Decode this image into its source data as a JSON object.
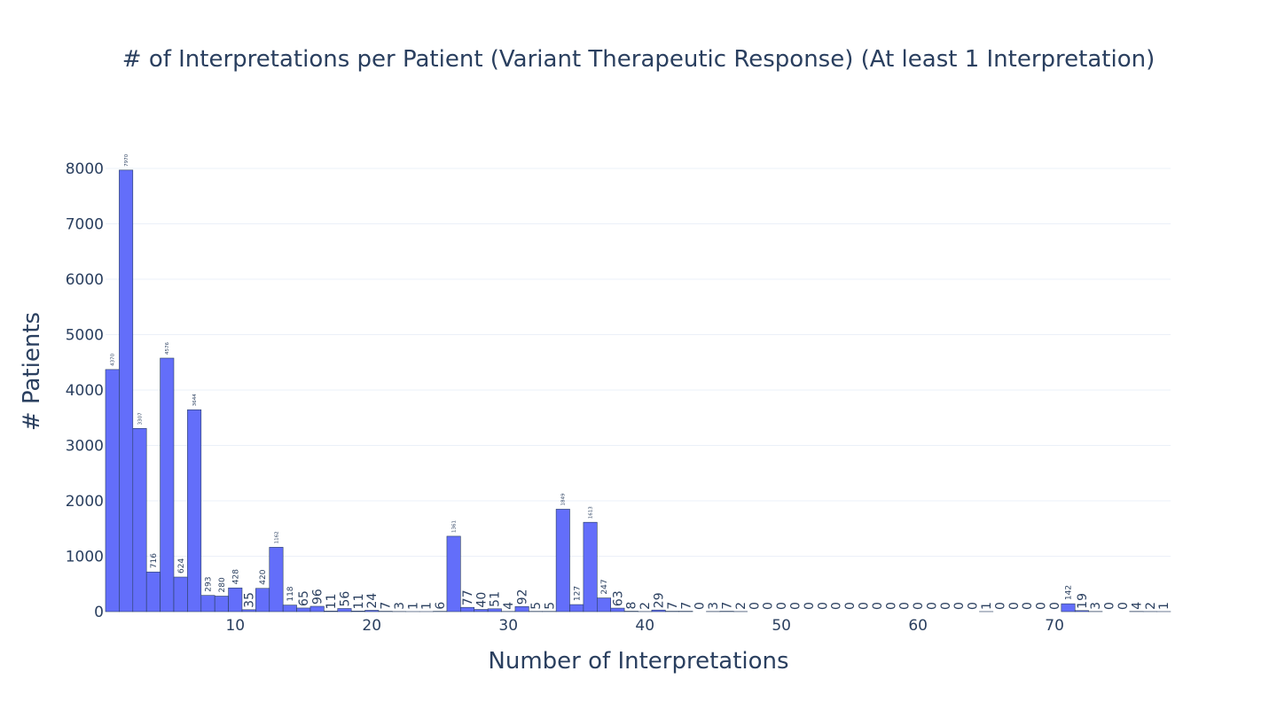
{
  "chart_data": {
    "type": "bar",
    "title": "# of Interpretations per Patient (Variant Therapeutic Response) (At least 1 Interpretation)",
    "xlabel": "Number of Interpretations",
    "ylabel": "# Patients",
    "x": [
      1,
      2,
      3,
      4,
      5,
      6,
      7,
      8,
      9,
      10,
      11,
      12,
      13,
      14,
      15,
      16,
      17,
      18,
      19,
      20,
      21,
      22,
      23,
      24,
      25,
      26,
      27,
      28,
      29,
      30,
      31,
      32,
      33,
      34,
      35,
      36,
      37,
      38,
      39,
      40,
      41,
      42,
      43,
      44,
      45,
      46,
      47,
      48,
      49,
      50,
      51,
      52,
      53,
      54,
      55,
      56,
      57,
      58,
      59,
      60,
      61,
      62,
      63,
      64,
      65,
      66,
      67,
      68,
      69,
      70,
      71,
      72,
      73,
      74,
      75,
      76,
      77,
      78
    ],
    "values": [
      4370,
      7970,
      3307,
      716,
      4576,
      624,
      3644,
      293,
      280,
      428,
      35,
      420,
      1162,
      118,
      65,
      96,
      11,
      56,
      11,
      24,
      7,
      3,
      1,
      1,
      6,
      1361,
      77,
      40,
      51,
      4,
      92,
      5,
      5,
      1849,
      127,
      1613,
      247,
      63,
      8,
      2,
      29,
      7,
      7,
      0,
      3,
      7,
      2,
      0,
      0,
      0,
      0,
      0,
      0,
      0,
      0,
      0,
      0,
      0,
      0,
      0,
      0,
      0,
      0,
      0,
      1,
      0,
      0,
      0,
      0,
      0,
      142,
      19,
      3,
      0,
      0,
      4,
      2,
      1
    ],
    "xlim": [
      0.5,
      78.5
    ],
    "ylim": [
      0,
      8400
    ],
    "xticks": [
      10,
      20,
      30,
      40,
      50,
      60,
      70
    ],
    "yticks": [
      0,
      1000,
      2000,
      3000,
      4000,
      5000,
      6000,
      7000,
      8000
    ],
    "colors": {
      "bar": "#636efa",
      "text": "#2a3f5f",
      "grid": "#ebf0f8"
    },
    "grid": true,
    "legend": "none"
  }
}
